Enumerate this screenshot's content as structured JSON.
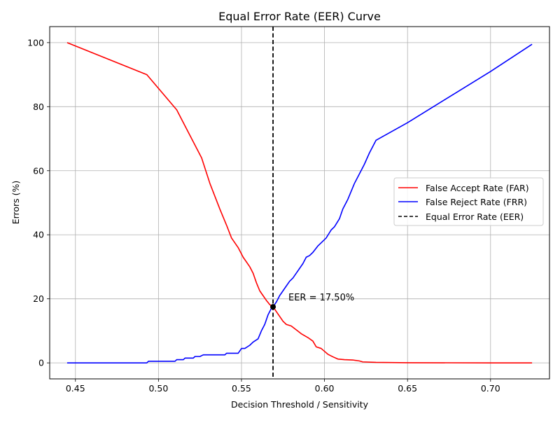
{
  "chart_data": {
    "type": "line",
    "title": "Equal Error Rate (EER) Curve",
    "xlabel": "Decision Threshold / Sensitivity",
    "ylabel": "Errors (%)",
    "xlim": [
      0.4345,
      0.7355
    ],
    "ylim": [
      -5,
      105
    ],
    "xticks": [
      0.45,
      0.5,
      0.55,
      0.6,
      0.65,
      0.7
    ],
    "xtick_labels": [
      "0.45",
      "0.50",
      "0.55",
      "0.60",
      "0.65",
      "0.70"
    ],
    "yticks": [
      0,
      20,
      40,
      60,
      80,
      100
    ],
    "ytick_labels": [
      "0",
      "20",
      "40",
      "60",
      "80",
      "100"
    ],
    "grid": true,
    "legend_position": "center-right",
    "series": [
      {
        "name": "False Accept Rate (FAR)",
        "color": "#ff0000",
        "style": "solid",
        "x": [
          0.445,
          0.493,
          0.511,
          0.517,
          0.526,
          0.531,
          0.537,
          0.541,
          0.544,
          0.548,
          0.551,
          0.555,
          0.557,
          0.559,
          0.561,
          0.563,
          0.565,
          0.567,
          0.569,
          0.571,
          0.573,
          0.575,
          0.577,
          0.58,
          0.583,
          0.586,
          0.59,
          0.593,
          0.595,
          0.598,
          0.6,
          0.602,
          0.605,
          0.608,
          0.612,
          0.617,
          0.621,
          0.623,
          0.631,
          0.65,
          0.7,
          0.725
        ],
        "y": [
          100,
          90,
          79,
          73,
          64,
          56,
          48,
          43,
          39,
          36,
          33,
          30,
          28,
          25,
          22.5,
          21,
          19.5,
          18.2,
          17.5,
          16,
          14.5,
          13,
          12,
          11.5,
          10.3,
          9.1,
          7.9,
          6.8,
          5,
          4.5,
          3.6,
          2.7,
          1.9,
          1.2,
          1.0,
          0.9,
          0.6,
          0.3,
          0.15,
          0.05,
          0,
          0
        ]
      },
      {
        "name": "False Reject Rate (FRR)",
        "color": "#0000ff",
        "style": "solid",
        "x": [
          0.445,
          0.493,
          0.494,
          0.51,
          0.511,
          0.515,
          0.516,
          0.521,
          0.522,
          0.525,
          0.527,
          0.54,
          0.541,
          0.548,
          0.55,
          0.552,
          0.555,
          0.557,
          0.56,
          0.562,
          0.564,
          0.566,
          0.568,
          0.569,
          0.571,
          0.573,
          0.575,
          0.577,
          0.579,
          0.581,
          0.583,
          0.585,
          0.587,
          0.589,
          0.591,
          0.593,
          0.596,
          0.598,
          0.601,
          0.604,
          0.606,
          0.609,
          0.611,
          0.614,
          0.618,
          0.621,
          0.624,
          0.627,
          0.631,
          0.65,
          0.7,
          0.725
        ],
        "y": [
          0,
          0,
          0.5,
          0.5,
          1.0,
          1.0,
          1.5,
          1.5,
          2.0,
          2.0,
          2.5,
          2.5,
          3.0,
          3.0,
          4.5,
          4.5,
          5.5,
          6.5,
          7.5,
          10,
          12,
          15,
          17,
          17.5,
          19,
          21,
          22.5,
          24,
          25.5,
          26.5,
          28,
          29.5,
          31,
          33,
          33.5,
          34.5,
          36.5,
          37.5,
          39,
          41.5,
          42.5,
          45,
          48,
          51,
          56,
          59,
          62,
          65.5,
          69.5,
          75,
          91,
          99.5
        ]
      },
      {
        "name": "Equal Error Rate (EER)",
        "color": "#000000",
        "style": "dashed",
        "x_vertical": 0.569
      }
    ],
    "eer_point": {
      "x": 0.569,
      "y": 17.5
    },
    "annotation": "EER = 17.50%"
  }
}
